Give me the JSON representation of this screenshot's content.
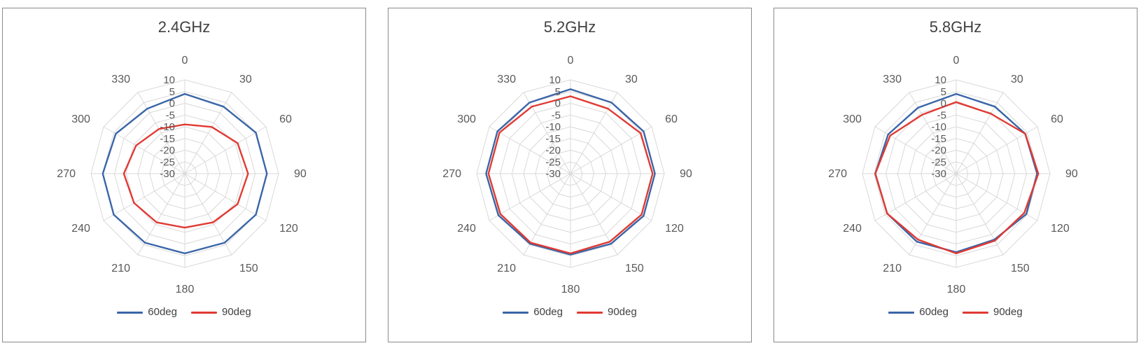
{
  "colors": {
    "series_60deg": "#3a65a8",
    "series_90deg": "#e03a33",
    "grid": "#d9d9d9",
    "axis_text": "#595959",
    "title_text": "#404040",
    "panel_border": "#8a8a8a"
  },
  "chart_data": [
    {
      "type": "radar",
      "title": "2.4GHz",
      "angle_labels": [
        "0",
        "30",
        "60",
        "90",
        "120",
        "150",
        "180",
        "210",
        "240",
        "270",
        "300",
        "330"
      ],
      "radial_ticks": [
        10,
        5,
        0,
        -5,
        -10,
        -15,
        -20,
        -25,
        -30
      ],
      "r_min": -30,
      "r_max": 10,
      "grid": true,
      "legend_position": "bottom",
      "series": [
        {
          "name": "60deg",
          "color": "#3a65a8",
          "values": [
            4,
            3,
            5,
            5,
            5,
            4,
            4,
            4,
            5,
            5,
            4,
            2
          ]
        },
        {
          "name": "90deg",
          "color": "#e03a33",
          "values": [
            -9,
            -7,
            -4,
            -3,
            -4,
            -6,
            -7,
            -6,
            -5,
            -4,
            -6,
            -8
          ]
        }
      ]
    },
    {
      "type": "radar",
      "title": "5.2GHz",
      "angle_labels": [
        "0",
        "30",
        "60",
        "90",
        "120",
        "150",
        "180",
        "210",
        "240",
        "270",
        "300",
        "330"
      ],
      "radial_ticks": [
        10,
        5,
        0,
        -5,
        -10,
        -15,
        -20,
        -25,
        -30
      ],
      "r_min": -30,
      "r_max": 10,
      "grid": true,
      "legend_position": "bottom",
      "series": [
        {
          "name": "60deg",
          "color": "#3a65a8",
          "values": [
            6,
            5,
            6,
            6,
            6,
            4.5,
            4.5,
            4.5,
            5.5,
            6,
            6,
            5
          ]
        },
        {
          "name": "90deg",
          "color": "#e03a33",
          "values": [
            3,
            2,
            4.5,
            5,
            5,
            3.5,
            4,
            4,
            4.5,
            5,
            5,
            3
          ]
        }
      ]
    },
    {
      "type": "radar",
      "title": "5.8GHz",
      "angle_labels": [
        "0",
        "30",
        "60",
        "90",
        "120",
        "150",
        "180",
        "210",
        "240",
        "270",
        "300",
        "330"
      ],
      "radial_ticks": [
        10,
        5,
        0,
        -5,
        -10,
        -15,
        -20,
        -25,
        -30
      ],
      "r_min": -30,
      "r_max": 10,
      "grid": true,
      "legend_position": "bottom",
      "series": [
        {
          "name": "60deg",
          "color": "#3a65a8",
          "values": [
            4,
            3,
            4,
            4.5,
            4.5,
            2.5,
            3.5,
            3.5,
            4,
            4.5,
            3.5,
            2.5
          ]
        },
        {
          "name": "90deg",
          "color": "#e03a33",
          "values": [
            0.5,
            -0.5,
            4,
            5,
            3.5,
            3,
            4,
            2.5,
            4,
            4.5,
            2.5,
            -1
          ]
        }
      ]
    }
  ]
}
